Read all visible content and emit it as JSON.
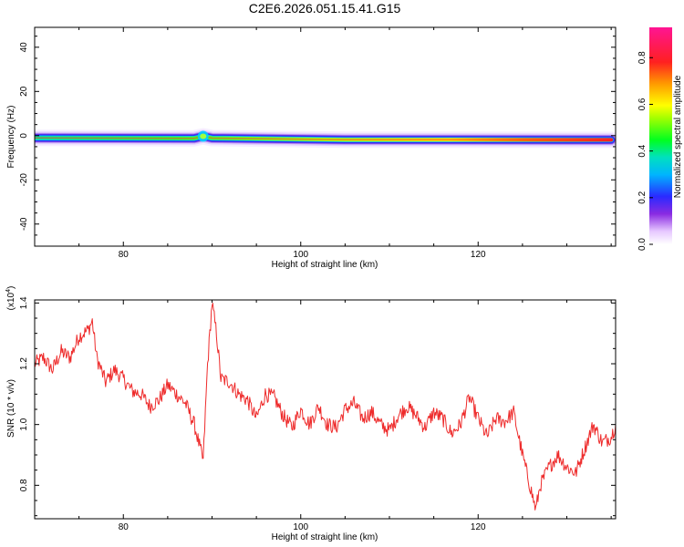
{
  "chart_data": [
    {
      "type": "heatmap",
      "title": "C2E6.2026.051.15.41.G15",
      "xlabel": "Height of straight line (km)",
      "ylabel": "Frequency (Hz)",
      "xlim": [
        70,
        135.5
      ],
      "ylim": [
        -50,
        49
      ],
      "xticks": [
        "80",
        "100",
        "120"
      ],
      "yticks": [
        "40",
        "20",
        "0",
        "-20",
        "-40"
      ],
      "band": {
        "center_freq_hz": [
          {
            "x": 70,
            "y": -1.0
          },
          {
            "x": 88,
            "y": -1.2
          },
          {
            "x": 89,
            "y": -0.3
          },
          {
            "x": 90,
            "y": -1.1
          },
          {
            "x": 105,
            "y": -1.8
          },
          {
            "x": 135,
            "y": -1.9
          }
        ],
        "peak_amplitude": [
          {
            "x": 70,
            "y": 0.45
          },
          {
            "x": 80,
            "y": 0.55
          },
          {
            "x": 95,
            "y": 0.65
          },
          {
            "x": 110,
            "y": 0.78
          },
          {
            "x": 122,
            "y": 0.88
          },
          {
            "x": 135,
            "y": 0.93
          }
        ]
      },
      "colorbar": {
        "label": "Normalized spectral amplitude",
        "range": [
          0,
          0.93
        ],
        "ticks": [
          "0.0",
          "0.2",
          "0.4",
          "0.6",
          "0.8"
        ]
      }
    },
    {
      "type": "line",
      "xlabel": "Height of straight line (km)",
      "ylabel": "SNR (10 * v/v)",
      "multiplier_label": "(x10",
      "multiplier_exp": "4",
      "multiplier_close": ")",
      "xlim": [
        70,
        135.5
      ],
      "ylim": [
        0.69,
        1.41
      ],
      "xticks": [
        "80",
        "100",
        "120"
      ],
      "yticks": [
        "0.8",
        "1.0",
        "1.2",
        "1.4"
      ],
      "color": "#ee2b2b",
      "points": [
        [
          70,
          1.2
        ],
        [
          71,
          1.22
        ],
        [
          72,
          1.18
        ],
        [
          73,
          1.24
        ],
        [
          74,
          1.22
        ],
        [
          75,
          1.29
        ],
        [
          76,
          1.31
        ],
        [
          76.5,
          1.34
        ],
        [
          77,
          1.22
        ],
        [
          78,
          1.14
        ],
        [
          79,
          1.18
        ],
        [
          80,
          1.15
        ],
        [
          81,
          1.11
        ],
        [
          82,
          1.1
        ],
        [
          83,
          1.06
        ],
        [
          84,
          1.08
        ],
        [
          85,
          1.13
        ],
        [
          86,
          1.1
        ],
        [
          87,
          1.07
        ],
        [
          88,
          1.0
        ],
        [
          89,
          0.88
        ],
        [
          89.5,
          1.2
        ],
        [
          90,
          1.4
        ],
        [
          90.5,
          1.3
        ],
        [
          91,
          1.15
        ],
        [
          92,
          1.14
        ],
        [
          93,
          1.1
        ],
        [
          94,
          1.08
        ],
        [
          95,
          1.02
        ],
        [
          96,
          1.1
        ],
        [
          97,
          1.09
        ],
        [
          98,
          1.03
        ],
        [
          99,
          0.99
        ],
        [
          100,
          1.05
        ],
        [
          101,
          1.0
        ],
        [
          102,
          1.06
        ],
        [
          103,
          1.0
        ],
        [
          104,
          0.99
        ],
        [
          105,
          1.05
        ],
        [
          106,
          1.07
        ],
        [
          107,
          1.02
        ],
        [
          108,
          1.04
        ],
        [
          109,
          1.0
        ],
        [
          110,
          0.98
        ],
        [
          111,
          1.03
        ],
        [
          112,
          1.06
        ],
        [
          113,
          1.03
        ],
        [
          114,
          0.99
        ],
        [
          115,
          1.04
        ],
        [
          116,
          1.02
        ],
        [
          117,
          0.97
        ],
        [
          118,
          1.0
        ],
        [
          119,
          1.09
        ],
        [
          120,
          1.02
        ],
        [
          121,
          0.96
        ],
        [
          122,
          1.02
        ],
        [
          123,
          1.01
        ],
        [
          124,
          1.04
        ],
        [
          125,
          0.9
        ],
        [
          126,
          0.78
        ],
        [
          126.5,
          0.72
        ],
        [
          127,
          0.8
        ],
        [
          128,
          0.86
        ],
        [
          129,
          0.9
        ],
        [
          130,
          0.86
        ],
        [
          131,
          0.84
        ],
        [
          132,
          0.92
        ],
        [
          133,
          1.0
        ],
        [
          134,
          0.94
        ],
        [
          135,
          0.96
        ],
        [
          135.5,
          1.0
        ]
      ]
    }
  ]
}
